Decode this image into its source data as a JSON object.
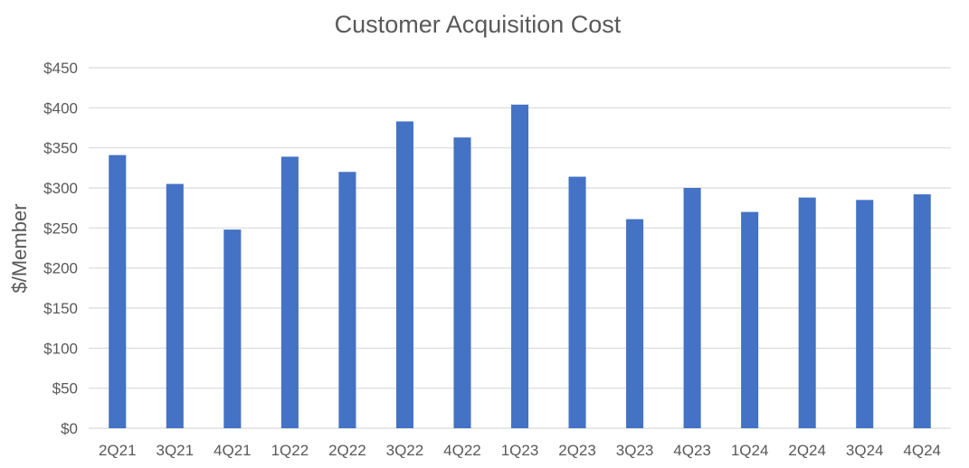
{
  "chart_data": {
    "type": "bar",
    "title": "Customer Acquisition Cost",
    "xlabel": "",
    "ylabel": "$/Member",
    "categories": [
      "2Q21",
      "3Q21",
      "4Q21",
      "1Q22",
      "2Q22",
      "3Q22",
      "4Q22",
      "1Q23",
      "2Q23",
      "3Q23",
      "4Q23",
      "1Q24",
      "2Q24",
      "3Q24",
      "4Q24"
    ],
    "values": [
      341,
      305,
      248,
      339,
      320,
      383,
      363,
      404,
      314,
      261,
      300,
      270,
      288,
      285,
      292
    ],
    "ylim": [
      0,
      450
    ],
    "yticks": [
      0,
      50,
      100,
      150,
      200,
      250,
      300,
      350,
      400,
      450
    ],
    "ytick_labels": [
      "$0",
      "$50",
      "$100",
      "$150",
      "$200",
      "$250",
      "$300",
      "$350",
      "$400",
      "$450"
    ],
    "grid": true,
    "legend": "none",
    "bar_color": "#4472C4"
  }
}
